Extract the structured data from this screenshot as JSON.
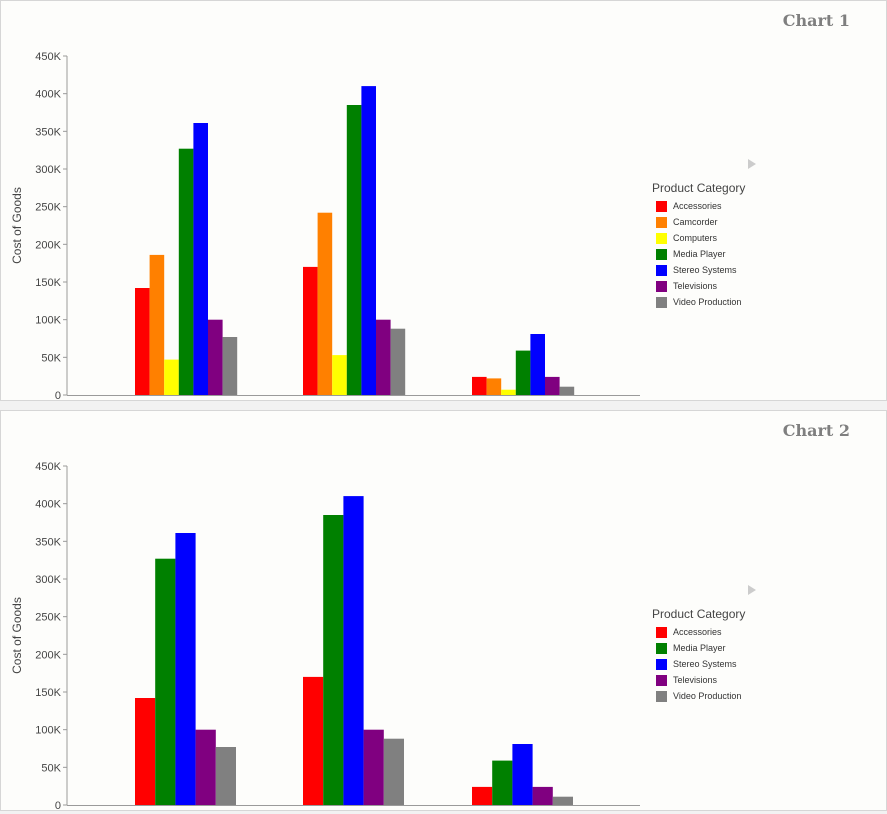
{
  "chart_data": [
    {
      "type": "bar",
      "title": "Chart 1",
      "ylabel": "Cost of Goods",
      "xlabel": "",
      "ylim": [
        0,
        450000
      ],
      "yticks": [
        "0",
        "50K",
        "100K",
        "150K",
        "200K",
        "250K",
        "300K",
        "350K",
        "400K",
        "450K"
      ],
      "categories": [
        "",
        "",
        ""
      ],
      "legend_title": "Product Category",
      "legend_position": "right",
      "series": [
        {
          "name": "Accessories",
          "color": "#ff0000",
          "values": [
            142000,
            170000,
            24000
          ]
        },
        {
          "name": "Camcorder",
          "color": "#ff8000",
          "values": [
            186000,
            242000,
            22000
          ]
        },
        {
          "name": "Computers",
          "color": "#ffff00",
          "values": [
            47000,
            53000,
            7000
          ]
        },
        {
          "name": "Media Player",
          "color": "#008000",
          "values": [
            327000,
            385000,
            59000
          ]
        },
        {
          "name": "Stereo Systems",
          "color": "#0000ff",
          "values": [
            361000,
            410000,
            81000
          ]
        },
        {
          "name": "Televisions",
          "color": "#800080",
          "values": [
            100000,
            100000,
            24000
          ]
        },
        {
          "name": "Video Production",
          "color": "#808080",
          "values": [
            77000,
            88000,
            11000
          ]
        }
      ]
    },
    {
      "type": "bar",
      "title": "Chart 2",
      "ylabel": "Cost of Goods",
      "xlabel": "",
      "ylim": [
        0,
        450000
      ],
      "yticks": [
        "0",
        "50K",
        "100K",
        "150K",
        "200K",
        "250K",
        "300K",
        "350K",
        "400K",
        "450K"
      ],
      "categories": [
        "",
        "",
        ""
      ],
      "legend_title": "Product Category",
      "legend_position": "right",
      "series": [
        {
          "name": "Accessories",
          "color": "#ff0000",
          "values": [
            142000,
            170000,
            24000
          ]
        },
        {
          "name": "Media Player",
          "color": "#008000",
          "values": [
            327000,
            385000,
            59000
          ]
        },
        {
          "name": "Stereo Systems",
          "color": "#0000ff",
          "values": [
            361000,
            410000,
            81000
          ]
        },
        {
          "name": "Televisions",
          "color": "#800080",
          "values": [
            100000,
            100000,
            24000
          ]
        },
        {
          "name": "Video Production",
          "color": "#808080",
          "values": [
            77000,
            88000,
            11000
          ]
        }
      ]
    }
  ]
}
